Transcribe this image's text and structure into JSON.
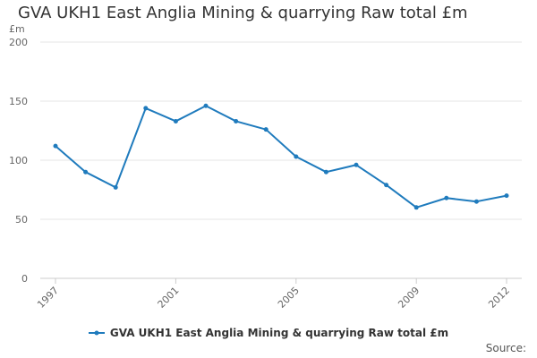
{
  "chart_data": {
    "type": "line",
    "title": "GVA UKH1 East Anglia Mining & quarrying Raw total £m",
    "ylabel": "£m",
    "xlabel": "",
    "x": [
      1997,
      1998,
      1999,
      2000,
      2001,
      2002,
      2003,
      2004,
      2005,
      2006,
      2007,
      2008,
      2009,
      2010,
      2011,
      2012
    ],
    "x_tick_labels": [
      "1997",
      "2001",
      "2005",
      "2009",
      "2012"
    ],
    "x_tick_values": [
      1997,
      2001,
      2005,
      2009,
      2012
    ],
    "y_ticks": [
      0,
      50,
      100,
      150,
      200
    ],
    "ylim": [
      0,
      200
    ],
    "grid": true,
    "legend_position": "bottom",
    "series": [
      {
        "name": "GVA UKH1 East Anglia Mining & quarrying Raw total £m",
        "color": "#1f7bbd",
        "values": [
          112,
          90,
          77,
          144,
          133,
          146,
          133,
          126,
          103,
          90,
          96,
          79,
          60,
          68,
          65,
          70
        ]
      }
    ]
  },
  "footer": {
    "source": "Source:"
  }
}
